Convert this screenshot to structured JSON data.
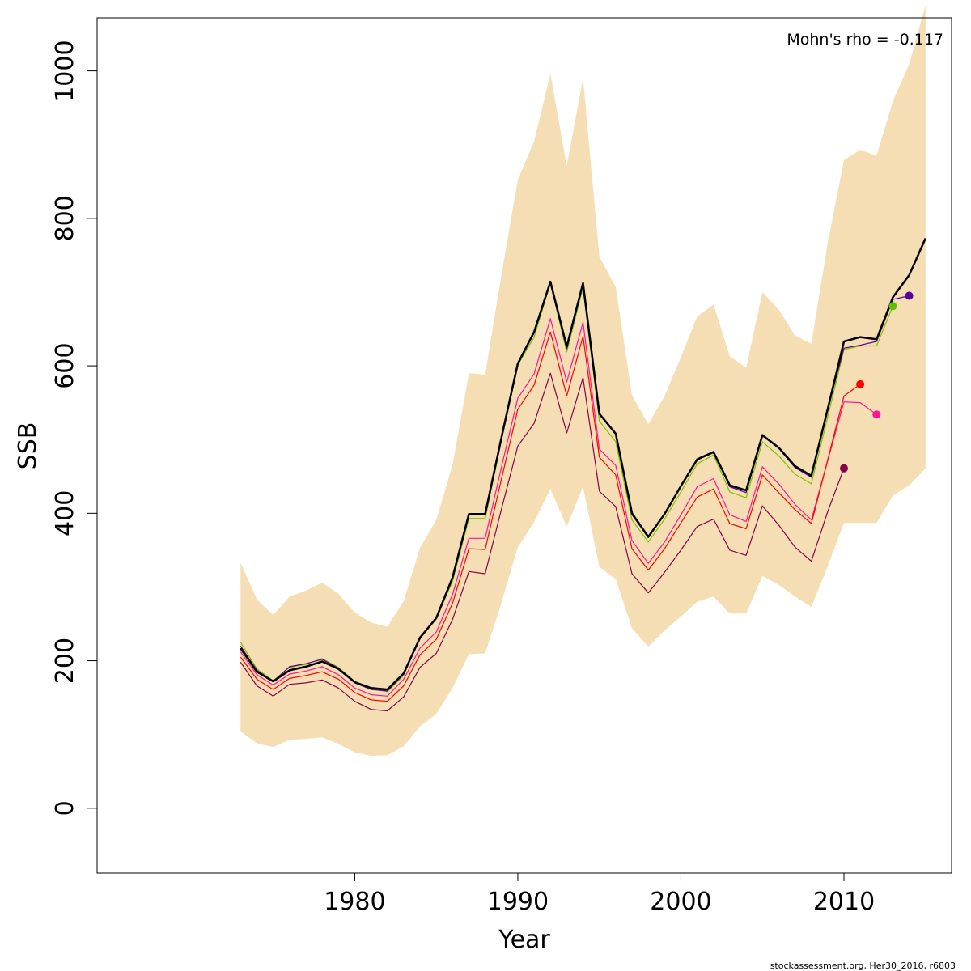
{
  "chart_data": {
    "type": "line",
    "xlabel": "Year",
    "ylabel": "SSB",
    "xlim": [
      1964.2,
      2016.6
    ],
    "ylim": [
      -88,
      1072
    ],
    "xticks": [
      1980,
      1990,
      2000,
      2010
    ],
    "yticks": [
      0,
      200,
      400,
      600,
      800,
      1000
    ],
    "annotation": "Mohn's rho = -0.117",
    "credit": "stockassessment.org, Her30_2016, r6803",
    "band_color": "#F5DEB3",
    "confidence_band": {
      "x": [
        1973,
        1974,
        1975,
        1976,
        1977,
        1978,
        1979,
        1980,
        1981,
        1982,
        1983,
        1984,
        1985,
        1986,
        1987,
        1988,
        1989,
        1990,
        1991,
        1992,
        1993,
        1994,
        1995,
        1996,
        1997,
        1998,
        1999,
        2000,
        2001,
        2002,
        2003,
        2004,
        2005,
        2006,
        2007,
        2008,
        2009,
        2010,
        2011,
        2012,
        2013,
        2014,
        2015
      ],
      "lower": [
        104,
        88,
        83,
        93,
        94,
        96,
        87,
        76,
        71,
        72,
        84,
        111,
        128,
        163,
        209,
        210,
        279,
        354,
        388,
        433,
        382,
        436,
        327,
        311,
        244,
        219,
        241,
        260,
        280,
        287,
        264,
        264,
        315,
        303,
        287,
        273,
        328,
        387,
        387,
        387,
        424,
        438,
        461
      ],
      "upper": [
        333,
        283,
        262,
        287,
        295,
        306,
        291,
        265,
        252,
        246,
        281,
        353,
        391,
        466,
        590,
        588,
        724,
        852,
        905,
        996,
        871,
        990,
        748,
        707,
        560,
        521,
        559,
        612,
        667,
        683,
        613,
        597,
        700,
        676,
        641,
        630,
        766,
        879,
        893,
        885,
        959,
        1009,
        1089
      ]
    },
    "series": [
      {
        "color": "#000000",
        "width": 2.5,
        "x": [
          1973,
          1974,
          1975,
          1976,
          1977,
          1978,
          1979,
          1980,
          1981,
          1982,
          1983,
          1984,
          1985,
          1986,
          1987,
          1988,
          1989,
          1990,
          1991,
          1992,
          1993,
          1994,
          1995,
          1996,
          1997,
          1998,
          1999,
          2000,
          2001,
          2002,
          2003,
          2004,
          2005,
          2006,
          2007,
          2008,
          2009,
          2010,
          2011,
          2012,
          2013,
          2014,
          2015
        ],
        "values": [
          217,
          185,
          172,
          187,
          192,
          199,
          189,
          171,
          163,
          161,
          183,
          231,
          258,
          313,
          399,
          399,
          503,
          603,
          646,
          714,
          626,
          712,
          535,
          508,
          400,
          368,
          399,
          437,
          473,
          483,
          438,
          431,
          506,
          489,
          464,
          451,
          541,
          633,
          639,
          636,
          693,
          723,
          773
        ]
      },
      {
        "color": "#7FBF00",
        "width": 1.2,
        "x": [
          1973,
          1974,
          1975,
          1976,
          1977,
          1978,
          1979,
          1980,
          1981,
          1982,
          1983,
          1984,
          1985,
          1986,
          1987,
          1988,
          1989,
          1990,
          1991,
          1992,
          1993,
          1994,
          1995,
          1996,
          1997,
          1998,
          1999,
          2000,
          2001,
          2002,
          2003,
          2004,
          2005,
          2006,
          2007,
          2008,
          2009,
          2010,
          2011,
          2012,
          2013
        ],
        "values": [
          225,
          189,
          173,
          191,
          195,
          203,
          191,
          172,
          162,
          158,
          180,
          233,
          257,
          308,
          393,
          393,
          500,
          601,
          639,
          712,
          619,
          706,
          525,
          497,
          391,
          361,
          392,
          429,
          467,
          479,
          429,
          421,
          497,
          478,
          453,
          440,
          530,
          622,
          627,
          627,
          681
        ]
      },
      {
        "color": "#5B009B",
        "width": 1.2,
        "x": [
          1973,
          1974,
          1975,
          1976,
          1977,
          1978,
          1979,
          1980,
          1981,
          1982,
          1983,
          1984,
          1985,
          1986,
          1987,
          1988,
          1989,
          1990,
          1991,
          1992,
          1993,
          1994,
          1995,
          1996,
          1997,
          1998,
          1999,
          2000,
          2001,
          2002,
          2003,
          2004,
          2005,
          2006,
          2007,
          2008,
          2009,
          2010,
          2011,
          2012,
          2013,
          2014
        ],
        "values": [
          220,
          187,
          172,
          192,
          196,
          202,
          190,
          170,
          161,
          159,
          182,
          232,
          258,
          312,
          398,
          398,
          503,
          604,
          645,
          714,
          623,
          711,
          534,
          507,
          398,
          367,
          398,
          437,
          474,
          484,
          436,
          428,
          506,
          488,
          462,
          449,
          541,
          624,
          628,
          633,
          690,
          695
        ]
      },
      {
        "color": "#FF1493",
        "width": 1.2,
        "x": [
          1973,
          1974,
          1975,
          1976,
          1977,
          1978,
          1979,
          1980,
          1981,
          1982,
          1983,
          1984,
          1985,
          1986,
          1987,
          1988,
          1989,
          1990,
          1991,
          1992,
          1993,
          1994,
          1995,
          1996,
          1997,
          1998,
          1999,
          2000,
          2001,
          2002,
          2003,
          2004,
          2005,
          2006,
          2007,
          2008,
          2009,
          2010,
          2011,
          2012
        ],
        "values": [
          212,
          181,
          167,
          182,
          186,
          192,
          181,
          163,
          154,
          152,
          175,
          217,
          239,
          290,
          366,
          366,
          463,
          556,
          589,
          664,
          578,
          659,
          487,
          465,
          363,
          332,
          361,
          398,
          436,
          447,
          398,
          389,
          463,
          440,
          412,
          391,
          471,
          551,
          550,
          534
        ]
      },
      {
        "color": "#FF0000",
        "width": 1.2,
        "x": [
          1973,
          1974,
          1975,
          1976,
          1977,
          1978,
          1979,
          1980,
          1981,
          1982,
          1983,
          1984,
          1985,
          1986,
          1987,
          1988,
          1989,
          1990,
          1991,
          1992,
          1993,
          1994,
          1995,
          1996,
          1997,
          1998,
          1999,
          2000,
          2001,
          2002,
          2003,
          2004,
          2005,
          2006,
          2007,
          2008,
          2009,
          2010,
          2011
        ],
        "values": [
          205,
          175,
          161,
          176,
          180,
          185,
          175,
          157,
          147,
          145,
          166,
          208,
          229,
          278,
          352,
          351,
          447,
          541,
          574,
          646,
          559,
          640,
          476,
          452,
          352,
          323,
          352,
          387,
          422,
          433,
          386,
          379,
          452,
          428,
          405,
          386,
          472,
          559,
          575
        ]
      },
      {
        "color": "#8B004B",
        "width": 1.2,
        "x": [
          1973,
          1974,
          1975,
          1976,
          1977,
          1978,
          1979,
          1980,
          1981,
          1982,
          1983,
          1984,
          1985,
          1986,
          1987,
          1988,
          1989,
          1990,
          1991,
          1992,
          1993,
          1994,
          1995,
          1996,
          1997,
          1998,
          1999,
          2000,
          2001,
          2002,
          2003,
          2004,
          2005,
          2006,
          2007,
          2008,
          2009,
          2010
        ],
        "values": [
          198,
          166,
          152,
          168,
          170,
          174,
          163,
          145,
          134,
          132,
          151,
          191,
          210,
          256,
          321,
          318,
          406,
          491,
          522,
          590,
          509,
          584,
          430,
          409,
          318,
          292,
          320,
          350,
          382,
          392,
          350,
          343,
          410,
          384,
          354,
          335,
          402,
          461
        ]
      }
    ],
    "end_points": [
      {
        "x": 2013,
        "y": 681,
        "color": "#5FBF00"
      },
      {
        "x": 2014,
        "y": 695,
        "color": "#5B009B"
      },
      {
        "x": 2012,
        "y": 534,
        "color": "#FF1493"
      },
      {
        "x": 2011,
        "y": 575,
        "color": "#FF0000"
      },
      {
        "x": 2010,
        "y": 461,
        "color": "#8B004B"
      }
    ]
  }
}
